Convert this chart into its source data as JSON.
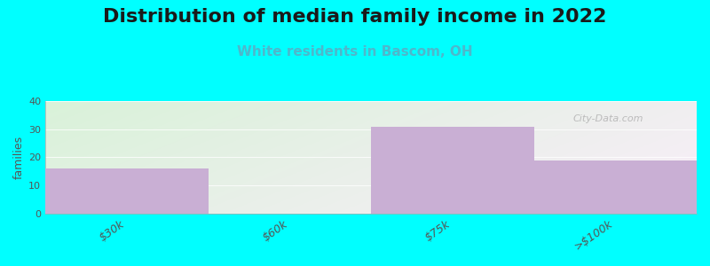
{
  "title": "Distribution of median family income in 2022",
  "subtitle": "White residents in Bascom, OH",
  "categories": [
    "$30k",
    "$60k",
    "$75k",
    ">$100k"
  ],
  "values": [
    16,
    0,
    31,
    19
  ],
  "bar_color": "#c9afd4",
  "ylabel": "families",
  "ylim": [
    0,
    40
  ],
  "yticks": [
    0,
    10,
    20,
    30,
    40
  ],
  "background_color": "#00ffff",
  "bg_gradient_colors": [
    "#d8edd8",
    "#f0f4f0",
    "#e8f0e8",
    "#f5f5f0"
  ],
  "title_fontsize": 16,
  "subtitle_fontsize": 11,
  "subtitle_color": "#4db8cc",
  "watermark": "City-Data.com",
  "bar_width": 1.0
}
